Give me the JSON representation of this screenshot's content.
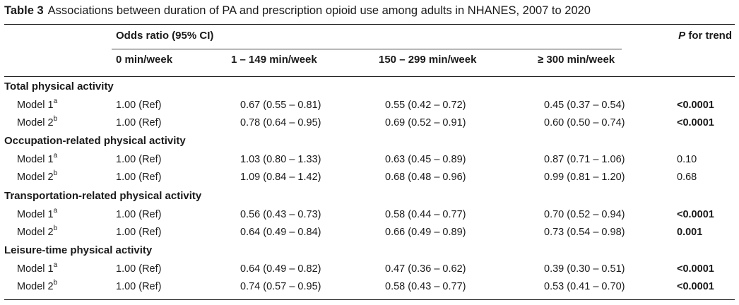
{
  "caption": {
    "label": "Table 3",
    "text": "Associations between duration of PA and prescription opioid use among adults in NHANES, 2007 to 2020"
  },
  "header": {
    "group_label": "Odds ratio (95% CI)",
    "ptrend_label_italic": "P",
    "ptrend_label_rest": " for trend",
    "columns": [
      "0 min/week",
      "1 – 149 min/week",
      "150 – 299 min/week",
      "≥ 300 min/week"
    ]
  },
  "sections": [
    {
      "title": "Total physical activity",
      "rows": [
        {
          "model": "Model 1",
          "sup": "a",
          "c0": "1.00 (Ref)",
          "c1": "0.67 (0.55 – 0.81)",
          "c2": "0.55 (0.42 – 0.72)",
          "c3": "0.45 (0.37 – 0.54)",
          "p": "<0.0001",
          "p_bold": true
        },
        {
          "model": "Model 2",
          "sup": "b",
          "c0": "1.00 (Ref)",
          "c1": "0.78 (0.64 – 0.95)",
          "c2": "0.69 (0.52 – 0.91)",
          "c3": "0.60 (0.50 – 0.74)",
          "p": "<0.0001",
          "p_bold": true
        }
      ]
    },
    {
      "title": "Occupation-related physical activity",
      "rows": [
        {
          "model": "Model 1",
          "sup": "a",
          "c0": "1.00 (Ref)",
          "c1": "1.03 (0.80 – 1.33)",
          "c2": "0.63 (0.45 – 0.89)",
          "c3": "0.87 (0.71 – 1.06)",
          "p": "0.10",
          "p_bold": false
        },
        {
          "model": "Model 2",
          "sup": "b",
          "c0": "1.00 (Ref)",
          "c1": "1.09 (0.84 – 1.42)",
          "c2": "0.68 (0.48 – 0.96)",
          "c3": "0.99 (0.81 – 1.20)",
          "p": "0.68",
          "p_bold": false
        }
      ]
    },
    {
      "title": "Transportation-related physical activity",
      "rows": [
        {
          "model": "Model 1",
          "sup": "a",
          "c0": "1.00 (Ref)",
          "c1": "0.56 (0.43 – 0.73)",
          "c2": "0.58 (0.44 – 0.77)",
          "c3": "0.70 (0.52 – 0.94)",
          "p": "<0.0001",
          "p_bold": true
        },
        {
          "model": "Model 2",
          "sup": "b",
          "c0": "1.00 (Ref)",
          "c1": "0.64 (0.49 – 0.84)",
          "c2": "0.66 (0.49 – 0.89)",
          "c3": "0.73 (0.54 – 0.98)",
          "p": "0.001",
          "p_bold": true
        }
      ]
    },
    {
      "title": "Leisure-time physical activity",
      "rows": [
        {
          "model": "Model 1",
          "sup": "a",
          "c0": "1.00 (Ref)",
          "c1": "0.64 (0.49 – 0.82)",
          "c2": "0.47 (0.36 – 0.62)",
          "c3": "0.39 (0.30 – 0.51)",
          "p": "<0.0001",
          "p_bold": true
        },
        {
          "model": "Model 2",
          "sup": "b",
          "c0": "1.00 (Ref)",
          "c1": "0.74 (0.57 – 0.95)",
          "c2": "0.58 (0.43 – 0.77)",
          "c3": "0.53 (0.41 – 0.70)",
          "p": "<0.0001",
          "p_bold": true
        }
      ]
    }
  ]
}
